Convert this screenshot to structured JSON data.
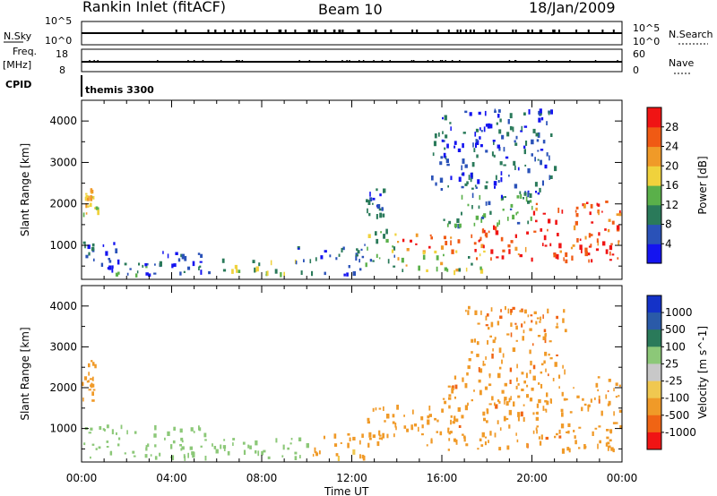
{
  "header": {
    "station": "Rankin Inlet (fitACF)",
    "beam": "Beam 10",
    "date": "18/Jan/2009"
  },
  "strip_labels": {
    "nsky": "N.Sky",
    "nsearch": "N.Search",
    "freq_line1": "Freq.",
    "freq_line2": "[MHz]",
    "nave": "Nave",
    "cpid": "CPID",
    "cpid_value": "themis 3300",
    "nsky_ticks": [
      "10^5",
      "10^0"
    ],
    "nsearch_ticks": [
      "10^5",
      "10^0"
    ],
    "freq_ticks": [
      "18",
      "8"
    ],
    "nave_ticks": [
      "60",
      "0"
    ]
  },
  "x_axis": {
    "label": "Time UT",
    "ticks": [
      "00:00",
      "04:00",
      "08:00",
      "12:00",
      "16:00",
      "20:00",
      "00:00"
    ],
    "tick_hours": [
      0,
      4,
      8,
      12,
      16,
      20,
      24
    ]
  },
  "panels": [
    {
      "id": "power",
      "ylabel": "Slant Range [km]",
      "yticks": [
        "1000",
        "2000",
        "3000",
        "4000"
      ],
      "cbar_label": "Power [dB]",
      "cbar_ticks": [
        "4",
        "8",
        "12",
        "16",
        "20",
        "24",
        "28"
      ],
      "cbar_colors": [
        "#1414f0",
        "#2a52b8",
        "#2a7a5a",
        "#5ab04a",
        "#f0d23c",
        "#f09a28",
        "#f05a14",
        "#f01414"
      ]
    },
    {
      "id": "velocity",
      "ylabel": "Slant Range [km]",
      "yticks": [
        "1000",
        "2000",
        "3000",
        "4000"
      ],
      "cbar_label": "Velocity [m s^-1]",
      "cbar_ticks": [
        "1000",
        "500",
        "100",
        "25",
        "-25",
        "-100",
        "-500",
        "-1000"
      ],
      "cbar_colors": [
        "#1432c8",
        "#2a5aa8",
        "#2a7a5a",
        "#8cc878",
        "#c8c8c8",
        "#f0c850",
        "#f09a28",
        "#f06414",
        "#f01414"
      ]
    }
  ],
  "chart_data": [
    {
      "type": "heatmap",
      "title": "Power [dB]",
      "xlabel": "Time UT",
      "ylabel": "Slant Range [km]",
      "xlim": [
        0,
        24
      ],
      "ylim": [
        180,
        4500
      ],
      "clim": [
        0,
        32
      ],
      "colorbar_ticks": [
        4,
        8,
        12,
        16,
        20,
        24,
        28
      ],
      "echo_regions": [
        {
          "t0": 0.0,
          "t1": 0.7,
          "r0": 1700,
          "r1": 2400,
          "value": 20
        },
        {
          "t0": 0.0,
          "t1": 1.5,
          "r0": 300,
          "r1": 1100,
          "value": 6
        },
        {
          "t0": 1.5,
          "t1": 3.5,
          "r0": 300,
          "r1": 700,
          "value": 8
        },
        {
          "t0": 3.5,
          "t1": 5.7,
          "r0": 300,
          "r1": 900,
          "value": 6
        },
        {
          "t0": 6.2,
          "t1": 9.5,
          "r0": 300,
          "r1": 700,
          "value": 14
        },
        {
          "t0": 9.5,
          "t1": 12.5,
          "r0": 300,
          "r1": 1000,
          "value": 6
        },
        {
          "t0": 12.5,
          "t1": 14.0,
          "r0": 500,
          "r1": 1500,
          "value": 12
        },
        {
          "t0": 12.6,
          "t1": 13.4,
          "r0": 1700,
          "r1": 2400,
          "value": 8
        },
        {
          "t0": 14.0,
          "t1": 18.0,
          "r0": 900,
          "r1": 1300,
          "value": 26
        },
        {
          "t0": 14.0,
          "t1": 18.0,
          "r0": 400,
          "r1": 900,
          "value": 16
        },
        {
          "t0": 16.0,
          "t1": 20.0,
          "r0": 1500,
          "r1": 2300,
          "value": 10
        },
        {
          "t0": 17.5,
          "t1": 20.0,
          "r0": 700,
          "r1": 1500,
          "value": 28
        },
        {
          "t0": 20.0,
          "t1": 24.0,
          "r0": 600,
          "r1": 2100,
          "value": 28
        },
        {
          "t0": 15.5,
          "t1": 21.0,
          "r0": 2200,
          "r1": 4300,
          "value": 6
        }
      ]
    },
    {
      "type": "heatmap",
      "title": "Velocity [m s^-1]",
      "xlabel": "Time UT",
      "ylabel": "Slant Range [km]",
      "xlim": [
        0,
        24
      ],
      "ylim": [
        180,
        4500
      ],
      "colorbar_ticks": [
        1000,
        500,
        100,
        25,
        -25,
        -100,
        -500,
        -1000
      ],
      "echo_regions": [
        {
          "t0": 0.0,
          "t1": 0.7,
          "r0": 1700,
          "r1": 2700,
          "value": -300
        },
        {
          "t0": 0.0,
          "t1": 6.0,
          "r0": 300,
          "r1": 1100,
          "value": 50
        },
        {
          "t0": 6.0,
          "t1": 10.0,
          "r0": 300,
          "r1": 800,
          "value": 60
        },
        {
          "t0": 10.0,
          "t1": 12.5,
          "r0": 300,
          "r1": 900,
          "value": -150
        },
        {
          "t0": 12.5,
          "t1": 16.0,
          "r0": 600,
          "r1": 1600,
          "value": -250
        },
        {
          "t0": 16.0,
          "t1": 24.0,
          "r0": 500,
          "r1": 2300,
          "value": -350
        },
        {
          "t0": 17.0,
          "t1": 21.5,
          "r0": 2300,
          "r1": 4000,
          "value": -400
        }
      ]
    }
  ]
}
